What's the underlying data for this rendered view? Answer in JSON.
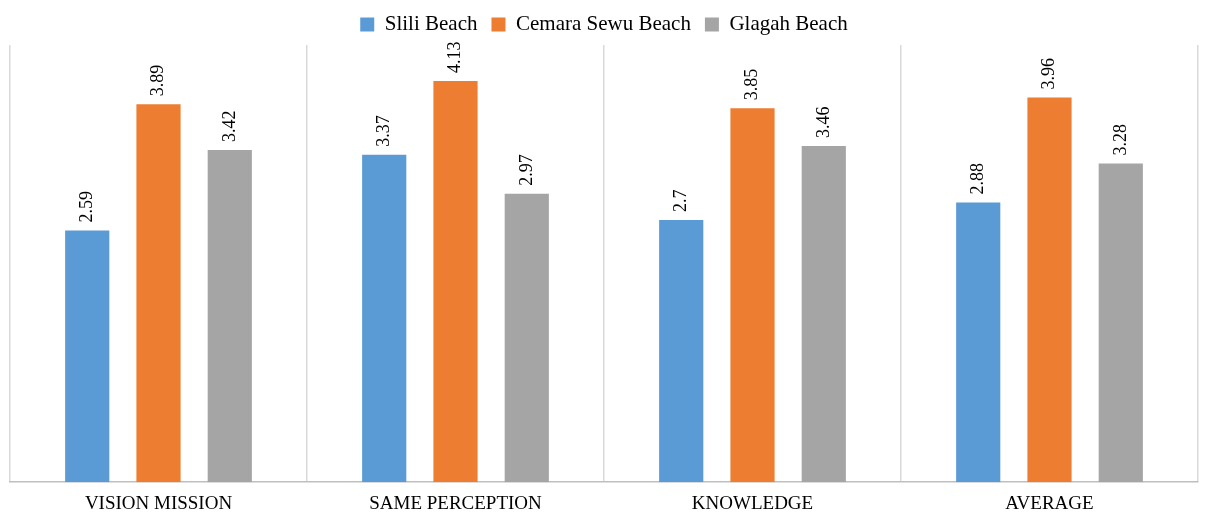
{
  "chart_data": {
    "type": "bar",
    "categories": [
      "VISION MISSION",
      "SAME PERCEPTION",
      "KNOWLEDGE",
      "AVERAGE"
    ],
    "series": [
      {
        "name": "Slili Beach",
        "color": "#5b9bd5",
        "values": [
          2.59,
          3.37,
          2.7,
          2.88
        ]
      },
      {
        "name": "Cemara Sewu Beach",
        "color": "#ed7d31",
        "values": [
          3.89,
          4.13,
          3.85,
          3.96
        ]
      },
      {
        "name": "Glagah Beach",
        "color": "#a5a5a5",
        "values": [
          3.42,
          2.97,
          3.46,
          3.28
        ]
      }
    ],
    "data_labels": true,
    "grid": "x",
    "legend": "top"
  }
}
